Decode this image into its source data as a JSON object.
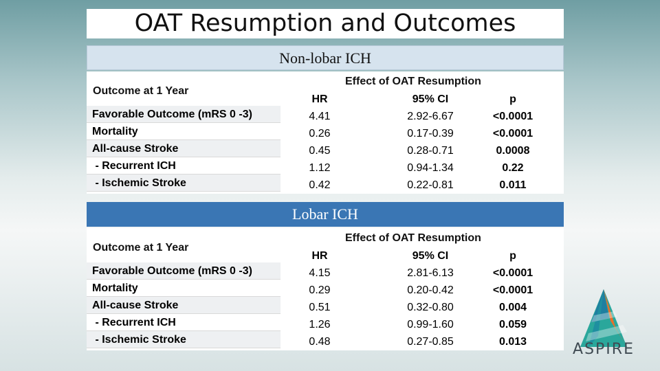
{
  "slide": {
    "title": "OAT Resumption and Outcomes"
  },
  "sections": [
    {
      "header": "Non-lobar ICH",
      "outcome_header": "Outcome at 1 Year",
      "effect_header": "Effect of OAT Resumption",
      "col_hr": "HR",
      "col_ci": "95% CI",
      "col_p": "p",
      "rows": [
        {
          "outcome": "Favorable Outcome (mRS 0 -3)",
          "hr": "4.41",
          "ci": "2.92-6.67",
          "p": "<0.0001"
        },
        {
          "outcome": "Mortality",
          "hr": "0.26",
          "ci": "0.17-0.39",
          "p": "<0.0001"
        },
        {
          "outcome": "All-cause Stroke",
          "hr": "0.45",
          "ci": "0.28-0.71",
          "p": "0.0008"
        },
        {
          "outcome": " - Recurrent ICH",
          "hr": "1.12",
          "ci": "0.94-1.34",
          "p": "0.22"
        },
        {
          "outcome": " - Ischemic Stroke",
          "hr": "0.42",
          "ci": "0.22-0.81",
          "p": "0.011"
        }
      ]
    },
    {
      "header": "Lobar ICH",
      "outcome_header": "Outcome at 1 Year",
      "effect_header": "Effect of OAT Resumption",
      "col_hr": "HR",
      "col_ci": "95% CI",
      "col_p": "p",
      "rows": [
        {
          "outcome": "Favorable Outcome (mRS 0 -3)",
          "hr": "4.15",
          "ci": "2.81-6.13",
          "p": "<0.0001"
        },
        {
          "outcome": "Mortality",
          "hr": "0.29",
          "ci": "0.20-0.42",
          "p": "<0.0001"
        },
        {
          "outcome": "All-cause Stroke",
          "hr": "0.51",
          "ci": "0.32-0.80",
          "p": "0.004"
        },
        {
          "outcome": " - Recurrent ICH",
          "hr": "1.26",
          "ci": "0.99-1.60",
          "p": "0.059"
        },
        {
          "outcome": " - Ischemic Stroke",
          "hr": "0.48",
          "ci": "0.27-0.85",
          "p": "0.013"
        }
      ]
    }
  ],
  "logo": {
    "text": "ASPIRE",
    "colors": [
      "#e8702a",
      "#2aa79b",
      "#1f7fa0"
    ]
  }
}
